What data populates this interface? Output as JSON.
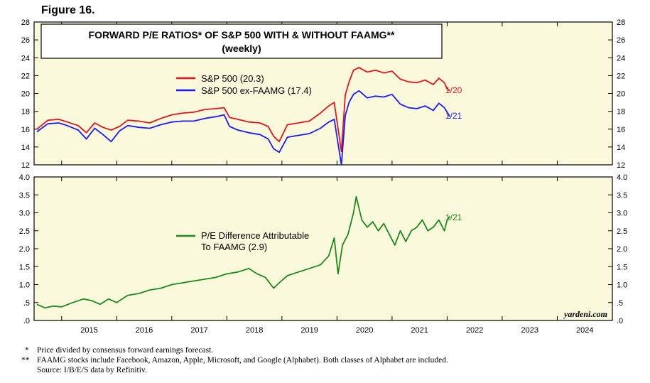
{
  "figure_label": "Figure 16.",
  "colors": {
    "panel_bg": "#fbf9dc",
    "sp500": "#e8141c",
    "ex_faamg": "#1a1aff",
    "difference": "#1c8a1c"
  },
  "watermark": "yardeni.com",
  "footnotes": {
    "fn1_mark": "*",
    "fn1": "Price divided by consensus forward earnings forecast.",
    "fn2_mark": "**",
    "fn2": "FAAMG stocks include Facebook, Amazon, Apple, Microsoft, and Google (Alphabet). Both classes of Alphabet are included.",
    "fn3": "Source: I/B/E/S data by Refinitiv."
  },
  "chart_data": [
    {
      "type": "line",
      "title": "FORWARD P/E RATIOS* OF S&P 500 WITH & WITHOUT FAAMG**",
      "subtitle": "(weekly)",
      "ylim": [
        12,
        28
      ],
      "yticks": [
        "12",
        "14",
        "16",
        "18",
        "20",
        "22",
        "24",
        "26",
        "28"
      ],
      "x_ticklabels": [
        "2015",
        "2016",
        "2017",
        "2018",
        "2019",
        "2020",
        "2021",
        "2022",
        "2023",
        "2024"
      ],
      "xlim": [
        2014.5,
        2025.0
      ],
      "legend_position": "top-left",
      "series": [
        {
          "name": "S&P 500 (20.3)",
          "end_label": "1/20",
          "x": [
            2014.55,
            2014.75,
            2014.95,
            2015.1,
            2015.3,
            2015.45,
            2015.6,
            2015.75,
            2015.9,
            2016.05,
            2016.2,
            2016.4,
            2016.6,
            2016.8,
            2017.0,
            2017.2,
            2017.4,
            2017.6,
            2017.8,
            2017.95,
            2018.05,
            2018.2,
            2018.4,
            2018.6,
            2018.75,
            2018.85,
            2018.95,
            2019.1,
            2019.3,
            2019.5,
            2019.7,
            2019.85,
            2019.95,
            2020.08,
            2020.15,
            2020.22,
            2020.3,
            2020.4,
            2020.55,
            2020.7,
            2020.85,
            2021.0,
            2021.15,
            2021.3,
            2021.45,
            2021.6,
            2021.75,
            2021.85,
            2021.95,
            2022.0,
            2022.05
          ],
          "values": [
            16.0,
            17.0,
            17.1,
            16.8,
            16.4,
            15.6,
            16.7,
            16.2,
            15.9,
            16.3,
            17.0,
            16.9,
            16.7,
            17.2,
            17.6,
            17.8,
            17.9,
            18.2,
            18.3,
            18.4,
            17.3,
            17.1,
            16.8,
            16.7,
            16.3,
            15.2,
            14.6,
            16.5,
            16.7,
            16.9,
            17.8,
            18.6,
            19.0,
            13.5,
            19.8,
            21.3,
            22.6,
            22.9,
            22.4,
            22.6,
            22.3,
            22.5,
            21.6,
            21.3,
            21.2,
            21.5,
            21.0,
            21.7,
            21.2,
            20.5,
            20.3
          ]
        },
        {
          "name": "S&P 500 ex-FAAMG (17.4)",
          "end_label": "1/21",
          "x": [
            2014.55,
            2014.75,
            2014.95,
            2015.1,
            2015.3,
            2015.45,
            2015.6,
            2015.75,
            2015.9,
            2016.05,
            2016.2,
            2016.4,
            2016.6,
            2016.8,
            2017.0,
            2017.2,
            2017.4,
            2017.6,
            2017.8,
            2017.95,
            2018.05,
            2018.2,
            2018.4,
            2018.6,
            2018.75,
            2018.85,
            2018.95,
            2019.1,
            2019.3,
            2019.5,
            2019.7,
            2019.85,
            2019.95,
            2020.08,
            2020.15,
            2020.22,
            2020.3,
            2020.4,
            2020.55,
            2020.7,
            2020.85,
            2021.0,
            2021.15,
            2021.3,
            2021.45,
            2021.6,
            2021.75,
            2021.85,
            2021.95,
            2022.0,
            2022.05
          ],
          "values": [
            15.7,
            16.6,
            16.7,
            16.4,
            15.9,
            14.9,
            16.1,
            15.4,
            14.6,
            15.8,
            16.4,
            16.2,
            16.1,
            16.5,
            16.8,
            16.9,
            16.9,
            17.2,
            17.4,
            17.6,
            16.3,
            15.9,
            15.6,
            15.4,
            14.9,
            13.8,
            13.4,
            15.1,
            15.3,
            15.5,
            16.1,
            16.8,
            17.1,
            12.0,
            17.5,
            19.0,
            19.9,
            20.3,
            19.5,
            19.7,
            19.6,
            19.9,
            18.8,
            18.4,
            18.3,
            18.6,
            18.1,
            18.9,
            18.4,
            17.9,
            17.4
          ]
        }
      ]
    },
    {
      "type": "line",
      "ylim": [
        0.0,
        4.0
      ],
      "yticks": [
        ".0",
        ".5",
        "1.0",
        "1.5",
        "2.0",
        "2.5",
        "3.0",
        "3.5",
        "4.0"
      ],
      "x_ticklabels": [
        "2015",
        "2016",
        "2017",
        "2018",
        "2019",
        "2020",
        "2021",
        "2022",
        "2023",
        "2024"
      ],
      "xlim": [
        2014.5,
        2025.0
      ],
      "series": [
        {
          "name": "P/E Difference Attributable To FAAMG (2.9)",
          "name_line1": "P/E Difference Attributable",
          "name_line2": "To FAAMG (2.9)",
          "end_label": "1/21",
          "x": [
            2014.55,
            2014.7,
            2014.85,
            2015.0,
            2015.2,
            2015.4,
            2015.55,
            2015.7,
            2015.85,
            2016.0,
            2016.2,
            2016.4,
            2016.6,
            2016.8,
            2017.0,
            2017.2,
            2017.4,
            2017.6,
            2017.8,
            2018.0,
            2018.2,
            2018.4,
            2018.55,
            2018.7,
            2018.85,
            2018.95,
            2019.1,
            2019.3,
            2019.5,
            2019.7,
            2019.85,
            2019.95,
            2020.02,
            2020.1,
            2020.2,
            2020.3,
            2020.35,
            2020.45,
            2020.55,
            2020.65,
            2020.75,
            2020.85,
            2020.95,
            2021.05,
            2021.15,
            2021.25,
            2021.35,
            2021.45,
            2021.55,
            2021.65,
            2021.75,
            2021.85,
            2021.95,
            2022.0,
            2022.05
          ],
          "values": [
            0.45,
            0.35,
            0.4,
            0.38,
            0.5,
            0.6,
            0.55,
            0.45,
            0.6,
            0.5,
            0.7,
            0.75,
            0.85,
            0.9,
            1.0,
            1.05,
            1.1,
            1.15,
            1.2,
            1.3,
            1.35,
            1.45,
            1.3,
            1.2,
            0.9,
            1.05,
            1.25,
            1.35,
            1.45,
            1.55,
            1.8,
            2.3,
            1.3,
            2.1,
            2.4,
            3.0,
            3.45,
            2.8,
            2.6,
            2.75,
            2.5,
            2.7,
            2.4,
            2.1,
            2.5,
            2.2,
            2.5,
            2.6,
            2.8,
            2.5,
            2.6,
            2.8,
            2.5,
            2.8,
            2.9
          ]
        }
      ]
    }
  ]
}
